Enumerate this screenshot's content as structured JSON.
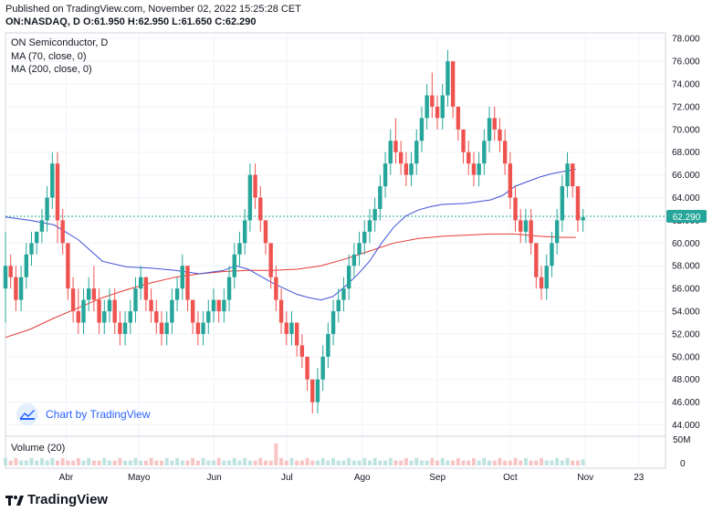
{
  "header": {
    "published": "Published on TradingView.com, November 02, 2022 15:25:28 CET",
    "symbol": "ON:NASDAQ, D",
    "ohlc": "O:61.950 H:62.950 L:61.650 C:62.290"
  },
  "legend": {
    "title": "ON Semiconductor, D",
    "ma70": "MA (70, close, 0)",
    "ma200": "MA (200, close, 0)"
  },
  "volume_pane": {
    "label": "Volume (20)",
    "axis_top": "50M",
    "axis_zero": "0"
  },
  "badge": {
    "text": "Chart by TradingView"
  },
  "footer": {
    "logo_text": "TradingView"
  },
  "colors": {
    "up": "#26a69a",
    "down": "#ef5350",
    "ma70": "#3f51d6",
    "ma200": "#e53935",
    "price_tag": "#26a69a",
    "grid": "#f0f3fa"
  },
  "chart_data": {
    "type": "candlestick",
    "title": "ON Semiconductor, D",
    "ylim": [
      43,
      78.5
    ],
    "yticks": [
      44,
      46,
      48,
      50,
      52,
      54,
      56,
      58,
      60,
      62,
      64,
      66,
      68,
      70,
      72,
      74,
      76,
      78
    ],
    "ytick_labels": [
      "44.000",
      "46.000",
      "48.000",
      "50.000",
      "52.000",
      "54.000",
      "56.000",
      "58.000",
      "60.000",
      "62.000",
      "64.000",
      "66.000",
      "68.000",
      "70.000",
      "72.000",
      "74.000",
      "76.000",
      "78.000"
    ],
    "xticks": [
      {
        "label": "Abr",
        "day": 25
      },
      {
        "label": "Mayo",
        "day": 55
      },
      {
        "label": "Jun",
        "day": 86
      },
      {
        "label": "Jul",
        "day": 116
      },
      {
        "label": "Ago",
        "day": 147
      },
      {
        "label": "Sep",
        "day": 178
      },
      {
        "label": "Oct",
        "day": 208
      },
      {
        "label": "Nov",
        "day": 239
      },
      {
        "label": "23",
        "day": 261
      }
    ],
    "last_price": 62.29,
    "last_price_label": "62.290",
    "candles": [
      [
        56,
        61,
        53,
        58
      ],
      [
        58,
        59,
        56,
        57
      ],
      [
        57,
        58,
        54,
        55
      ],
      [
        55,
        58,
        54,
        57
      ],
      [
        57,
        60,
        56,
        59
      ],
      [
        59,
        61,
        58,
        60
      ],
      [
        60,
        61,
        59,
        61
      ],
      [
        61,
        63,
        60,
        62
      ],
      [
        62,
        65,
        61,
        64
      ],
      [
        64,
        68,
        63,
        67
      ],
      [
        67,
        68,
        60,
        62
      ],
      [
        62,
        63,
        59,
        60
      ],
      [
        60,
        60,
        55,
        56
      ],
      [
        56,
        57,
        53,
        54
      ],
      [
        54,
        56,
        52,
        53
      ],
      [
        53,
        56,
        52,
        55
      ],
      [
        55,
        57,
        54,
        56
      ],
      [
        56,
        58,
        54,
        55
      ],
      [
        55,
        56,
        52,
        53
      ],
      [
        53,
        55,
        52,
        54
      ],
      [
        54,
        56,
        53,
        55
      ],
      [
        55,
        56,
        52,
        53
      ],
      [
        53,
        54,
        51,
        52
      ],
      [
        52,
        54,
        51,
        53
      ],
      [
        53,
        55,
        52,
        54
      ],
      [
        54,
        57,
        53,
        56
      ],
      [
        56,
        58,
        55,
        57
      ],
      [
        57,
        57,
        54,
        55
      ],
      [
        55,
        56,
        53,
        54
      ],
      [
        54,
        55,
        52,
        53
      ],
      [
        53,
        54,
        51,
        52
      ],
      [
        52,
        54,
        51,
        53
      ],
      [
        53,
        56,
        52,
        55
      ],
      [
        55,
        57,
        54,
        56
      ],
      [
        56,
        59,
        55,
        58
      ],
      [
        58,
        58,
        54,
        55
      ],
      [
        55,
        55,
        52,
        53
      ],
      [
        53,
        54,
        51,
        52
      ],
      [
        52,
        54,
        51,
        53
      ],
      [
        53,
        55,
        52,
        54
      ],
      [
        54,
        56,
        53,
        55
      ],
      [
        55,
        55,
        53,
        54
      ],
      [
        54,
        56,
        53,
        55
      ],
      [
        55,
        58,
        54,
        57
      ],
      [
        57,
        60,
        56,
        59
      ],
      [
        59,
        61,
        58,
        60
      ],
      [
        60,
        63,
        59,
        62
      ],
      [
        62,
        67,
        61,
        66
      ],
      [
        66,
        67,
        63,
        64
      ],
      [
        64,
        65,
        61,
        62
      ],
      [
        62,
        62,
        59,
        60
      ],
      [
        60,
        60,
        56,
        57
      ],
      [
        57,
        58,
        54,
        55
      ],
      [
        55,
        56,
        52,
        53
      ],
      [
        53,
        54,
        51,
        52
      ],
      [
        52,
        54,
        51,
        53
      ],
      [
        53,
        53,
        50,
        51
      ],
      [
        51,
        52,
        49,
        50
      ],
      [
        50,
        50,
        47,
        48
      ],
      [
        48,
        48,
        45,
        46
      ],
      [
        46,
        49,
        45,
        48
      ],
      [
        48,
        51,
        47,
        50
      ],
      [
        50,
        53,
        49,
        52
      ],
      [
        52,
        55,
        51,
        54
      ],
      [
        54,
        56,
        53,
        55
      ],
      [
        55,
        57,
        54,
        56
      ],
      [
        56,
        59,
        55,
        58
      ],
      [
        58,
        60,
        57,
        59
      ],
      [
        59,
        61,
        58,
        60
      ],
      [
        60,
        62,
        59,
        61
      ],
      [
        61,
        63,
        60,
        62
      ],
      [
        62,
        64,
        61,
        63
      ],
      [
        63,
        66,
        62,
        65
      ],
      [
        65,
        68,
        64,
        67
      ],
      [
        67,
        70,
        66,
        69
      ],
      [
        69,
        71,
        67,
        68
      ],
      [
        68,
        69,
        66,
        67
      ],
      [
        67,
        68,
        65,
        66
      ],
      [
        66,
        68,
        65,
        67
      ],
      [
        67,
        70,
        66,
        69
      ],
      [
        69,
        72,
        68,
        71
      ],
      [
        71,
        74,
        70,
        73
      ],
      [
        73,
        75,
        71,
        72
      ],
      [
        72,
        73,
        70,
        71
      ],
      [
        71,
        74,
        70,
        73
      ],
      [
        73,
        77,
        72,
        76
      ],
      [
        76,
        76,
        71,
        72
      ],
      [
        72,
        72,
        69,
        70
      ],
      [
        70,
        70,
        67,
        68
      ],
      [
        68,
        69,
        66,
        67
      ],
      [
        67,
        68,
        65,
        66
      ],
      [
        66,
        68,
        65,
        67
      ],
      [
        67,
        70,
        66,
        69
      ],
      [
        69,
        72,
        68,
        71
      ],
      [
        71,
        72,
        69,
        70
      ],
      [
        70,
        71,
        68,
        69
      ],
      [
        69,
        70,
        66,
        67
      ],
      [
        67,
        68,
        63,
        64
      ],
      [
        64,
        65,
        61,
        62
      ],
      [
        62,
        63,
        60,
        61
      ],
      [
        61,
        63,
        60,
        62
      ],
      [
        62,
        63,
        59,
        60
      ],
      [
        60,
        60,
        56,
        57
      ],
      [
        57,
        58,
        55,
        56
      ],
      [
        56,
        59,
        55,
        58
      ],
      [
        58,
        61,
        57,
        60
      ],
      [
        60,
        63,
        59,
        62
      ],
      [
        62,
        66,
        61,
        65
      ],
      [
        65,
        68,
        64,
        67
      ],
      [
        67,
        67,
        64,
        65
      ],
      [
        65,
        65,
        61,
        62
      ],
      [
        62,
        63,
        61,
        62.29
      ]
    ],
    "ma70": [
      [
        0,
        62.3
      ],
      [
        10,
        62.0
      ],
      [
        20,
        61.6
      ],
      [
        30,
        60.3
      ],
      [
        40,
        58.4
      ],
      [
        50,
        57.9
      ],
      [
        60,
        57.8
      ],
      [
        70,
        57.6
      ],
      [
        80,
        57.3
      ],
      [
        90,
        57.6
      ],
      [
        95,
        58.0
      ],
      [
        100,
        57.7
      ],
      [
        110,
        56.5
      ],
      [
        120,
        55.5
      ],
      [
        125,
        55.2
      ],
      [
        130,
        55.0
      ],
      [
        135,
        55.3
      ],
      [
        140,
        56.2
      ],
      [
        145,
        57.2
      ],
      [
        150,
        58.4
      ],
      [
        155,
        60.0
      ],
      [
        160,
        61.4
      ],
      [
        165,
        62.4
      ],
      [
        170,
        62.9
      ],
      [
        175,
        63.2
      ],
      [
        180,
        63.4
      ],
      [
        190,
        63.5
      ],
      [
        200,
        63.8
      ],
      [
        205,
        64.2
      ],
      [
        210,
        65.0
      ],
      [
        215,
        65.4
      ],
      [
        220,
        65.8
      ],
      [
        225,
        66.1
      ],
      [
        230,
        66.3
      ],
      [
        235,
        66.5
      ]
    ],
    "ma200": [
      [
        0,
        51.7
      ],
      [
        10,
        52.4
      ],
      [
        20,
        53.4
      ],
      [
        30,
        54.3
      ],
      [
        40,
        55.2
      ],
      [
        50,
        55.9
      ],
      [
        60,
        56.5
      ],
      [
        70,
        57.0
      ],
      [
        80,
        57.3
      ],
      [
        90,
        57.5
      ],
      [
        100,
        57.6
      ],
      [
        110,
        57.6
      ],
      [
        120,
        57.7
      ],
      [
        130,
        58.0
      ],
      [
        140,
        58.6
      ],
      [
        150,
        59.3
      ],
      [
        160,
        60.0
      ],
      [
        170,
        60.4
      ],
      [
        180,
        60.6
      ],
      [
        190,
        60.7
      ],
      [
        200,
        60.8
      ],
      [
        210,
        60.8
      ],
      [
        220,
        60.6
      ],
      [
        230,
        60.5
      ],
      [
        235,
        60.5
      ]
    ],
    "volume": [
      0.3,
      0.2,
      0.3,
      0.2,
      0.2,
      0.3,
      0.2,
      0.3,
      0.2,
      0.3,
      0.2,
      0.3,
      0.2,
      0.2,
      0.3,
      0.2,
      0.3,
      0.2,
      0.2,
      0.3,
      0.2,
      0.2,
      0.3,
      0.2,
      0.2,
      0.3,
      0.2,
      0.2,
      0.3,
      0.2,
      0.2,
      0.3,
      0.2,
      0.3,
      0.2,
      0.2,
      0.3,
      0.2,
      0.3,
      0.2,
      0.2,
      0.3,
      0.2,
      0.2,
      0.3,
      0.2,
      0.3,
      0.2,
      0.2,
      0.3,
      0.2,
      0.2,
      0.9,
      0.3,
      0.2,
      0.3,
      0.2,
      0.2,
      0.3,
      0.2,
      0.2,
      0.3,
      0.2,
      0.3,
      0.2,
      0.2,
      0.3,
      0.2,
      0.2,
      0.3,
      0.2,
      0.3,
      0.2,
      0.2,
      0.3,
      0.2,
      0.2,
      0.3,
      0.2,
      0.3,
      0.2,
      0.2,
      0.3,
      0.2,
      0.3,
      0.2,
      0.2,
      0.3,
      0.2,
      0.2,
      0.3,
      0.2,
      0.3,
      0.2,
      0.2,
      0.3,
      0.2,
      0.2,
      0.3,
      0.2,
      0.3,
      0.2,
      0.2,
      0.3,
      0.2,
      0.2,
      0.3,
      0.2,
      0.3,
      0.2,
      0.2,
      0.25
    ]
  }
}
